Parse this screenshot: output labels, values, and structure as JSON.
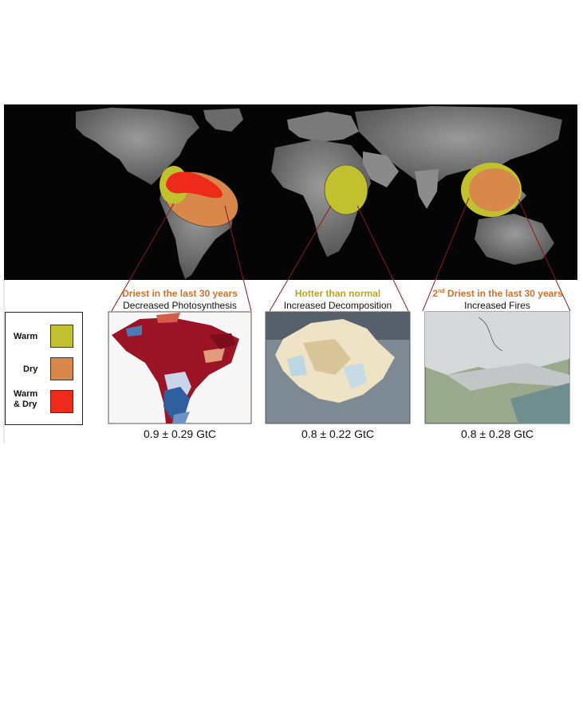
{
  "panels": [
    {
      "title": "Driest in the last 30 years",
      "title_color": "#d0722e",
      "subtitle": "Decreased Photosynthesis",
      "value": "0.9 ± 0.29 GtC"
    },
    {
      "title": "Hotter than normal",
      "title_color": "#b9a826",
      "subtitle": "Increased Decomposition",
      "value": "0.8 ± 0.22 GtC"
    },
    {
      "title_prefix": "2",
      "title_sup": "nd",
      "title_rest": " Driest in the last 30 years",
      "title_color": "#d0722e",
      "subtitle": "Increased Fires",
      "value": "0.8 ± 0.28 GtC"
    }
  ],
  "legend": [
    {
      "label": "Warm",
      "color": "#c1c12f"
    },
    {
      "label": "Dry",
      "color": "#d9884c"
    },
    {
      "label": "Warm\n& Dry",
      "color": "#ee2a1a"
    }
  ],
  "colors": {
    "warm": "#c1c12f",
    "dry": "#d9884c",
    "warm_dry": "#ee2a1a",
    "connector": "#8a1a1a"
  }
}
